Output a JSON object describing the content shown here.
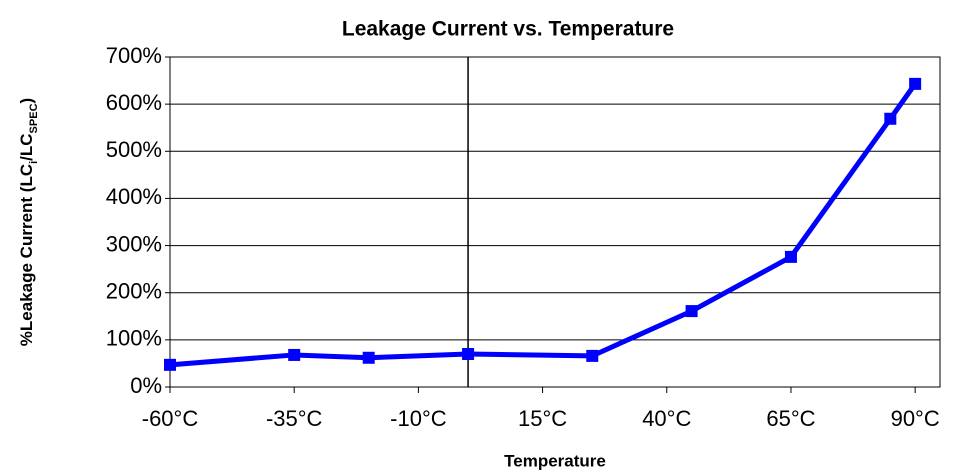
{
  "chart_data": {
    "type": "line",
    "title": "Leakage Current vs. Temperature",
    "x_label": "Temperature",
    "y_label_parts": [
      {
        "text": "%Leakage Current (LC"
      },
      {
        "text": "i",
        "sub": true
      },
      {
        "text": "/LC"
      },
      {
        "text": "SPEC",
        "sub": true
      },
      {
        "text": ")"
      }
    ],
    "x": [
      -60,
      -35,
      -20,
      0,
      25,
      45,
      65,
      85,
      90
    ],
    "series": [
      {
        "name": "Leakage Current",
        "color": "#0000ff",
        "values": [
          47,
          68,
          62,
          70,
          66,
          161,
          276,
          569,
          643
        ]
      }
    ],
    "xlim": [
      -60,
      95
    ],
    "xticks": [
      {
        "value": -60,
        "label": "-60°C"
      },
      {
        "value": -35,
        "label": "-35°C"
      },
      {
        "value": -10,
        "label": "-10°C"
      },
      {
        "value": 15,
        "label": "15°C"
      },
      {
        "value": 40,
        "label": "40°C"
      },
      {
        "value": 65,
        "label": "65°C"
      },
      {
        "value": 90,
        "label": "90°C"
      }
    ],
    "ylim": [
      0,
      700
    ],
    "yticks": [
      {
        "value": 0,
        "label": "0%"
      },
      {
        "value": 100,
        "label": "100%"
      },
      {
        "value": 200,
        "label": "200%"
      },
      {
        "value": 300,
        "label": "300%"
      },
      {
        "value": 400,
        "label": "400%"
      },
      {
        "value": 500,
        "label": "500%"
      },
      {
        "value": 600,
        "label": "600%"
      },
      {
        "value": 700,
        "label": "700%"
      }
    ],
    "grid": true
  }
}
